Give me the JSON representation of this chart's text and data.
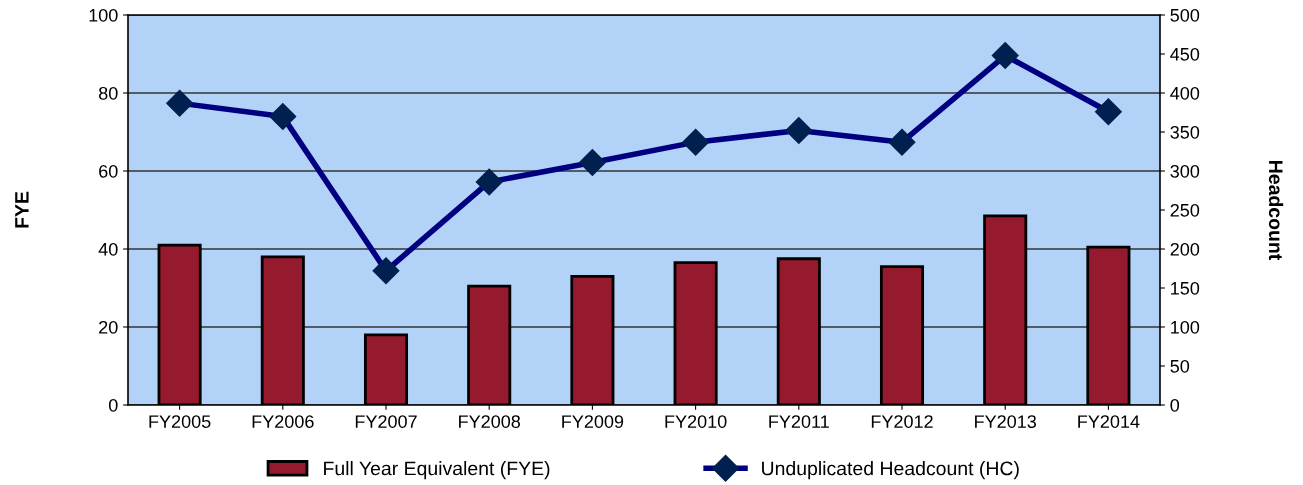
{
  "chart_data": {
    "type": "bar",
    "categories": [
      "FY2005",
      "FY2006",
      "FY2007",
      "FY2008",
      "FY2009",
      "FY2010",
      "FY2011",
      "FY2012",
      "FY2013",
      "FY2014"
    ],
    "series": [
      {
        "name": "Full Year Equivalent (FYE)",
        "color": "#961a2e",
        "values": [
          41,
          38,
          18,
          30.5,
          33,
          36.5,
          37.5,
          35.5,
          48.5,
          40.5
        ]
      },
      {
        "name": "Unduplicated Headcount (HC)",
        "type": "line",
        "axis": "y2",
        "color": "#000080",
        "values": [
          387,
          370,
          172,
          286,
          311,
          337,
          352,
          337,
          448,
          376
        ]
      }
    ],
    "ylabel": "FYE",
    "y2label": "Headcount",
    "ylim": [
      0,
      100
    ],
    "yticks": [
      0,
      20,
      40,
      60,
      80,
      100
    ],
    "y2lim": [
      0,
      500
    ],
    "y2ticks": [
      0,
      50,
      100,
      150,
      200,
      250,
      300,
      350,
      400,
      450,
      500
    ],
    "grid": "y",
    "legend": "bottom",
    "marker": "diamond"
  }
}
